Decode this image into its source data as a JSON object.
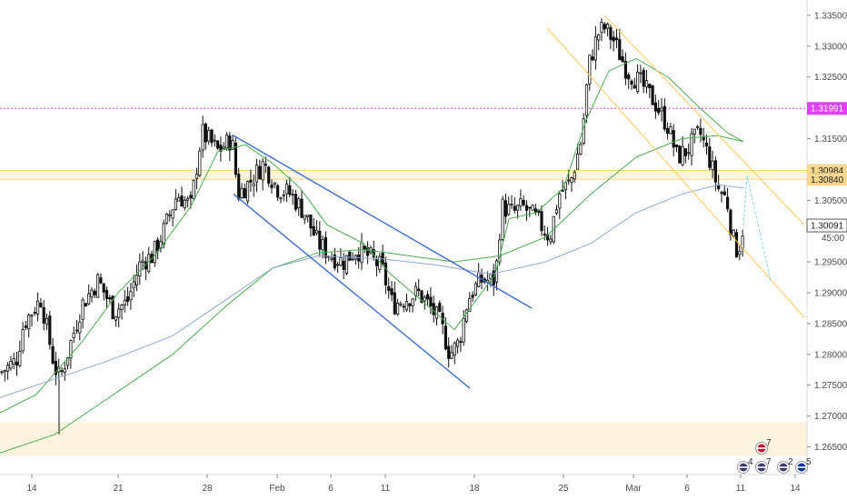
{
  "chart_data": {
    "type": "candlestick",
    "instrument": "",
    "x_ticks": [
      "14",
      "21",
      "28",
      "Feb",
      "6",
      "11",
      "18",
      "25",
      "Mar",
      "6",
      "11",
      "14"
    ],
    "y_ticks": [
      "1.33500",
      "1.33000",
      "1.32500",
      "1.31500",
      "1.30500",
      "1.29500",
      "1.29000",
      "1.28500",
      "1.28000",
      "1.27500",
      "1.27000",
      "1.26500"
    ],
    "y_range": [
      1.2605,
      1.3375
    ],
    "price_labels": [
      {
        "name": "resistance-magenta",
        "text": "1.31991",
        "value": 1.31991,
        "color": "#e040fb"
      },
      {
        "name": "zone-top",
        "text": "1.30984",
        "value": 1.30984,
        "color": "#f5d78e"
      },
      {
        "name": "zone-bottom",
        "text": "1.30840",
        "value": 1.3084,
        "color": "#f5d78e"
      },
      {
        "name": "last-price",
        "text": "1.30091",
        "value": 1.30091,
        "color": "#ffffff"
      }
    ],
    "countdown": "45:00",
    "zones": [
      {
        "name": "supply-zone",
        "from": 1.3084,
        "to": 1.3098
      },
      {
        "name": "demand-zone",
        "from": 1.2635,
        "to": 1.269
      }
    ],
    "series": [
      {
        "name": "ma-green",
        "color": "#4caf50",
        "type": "moving-average"
      },
      {
        "name": "ma-blue",
        "color": "#8fa8d6",
        "type": "moving-average"
      }
    ],
    "event_markers": [
      {
        "count": "7",
        "flag": "gb"
      },
      {
        "count": "4",
        "flag": "us"
      },
      {
        "count": "7",
        "flag": "us"
      },
      {
        "count": "2",
        "flag": "us"
      },
      {
        "count": "5",
        "flag": "eu"
      }
    ]
  }
}
